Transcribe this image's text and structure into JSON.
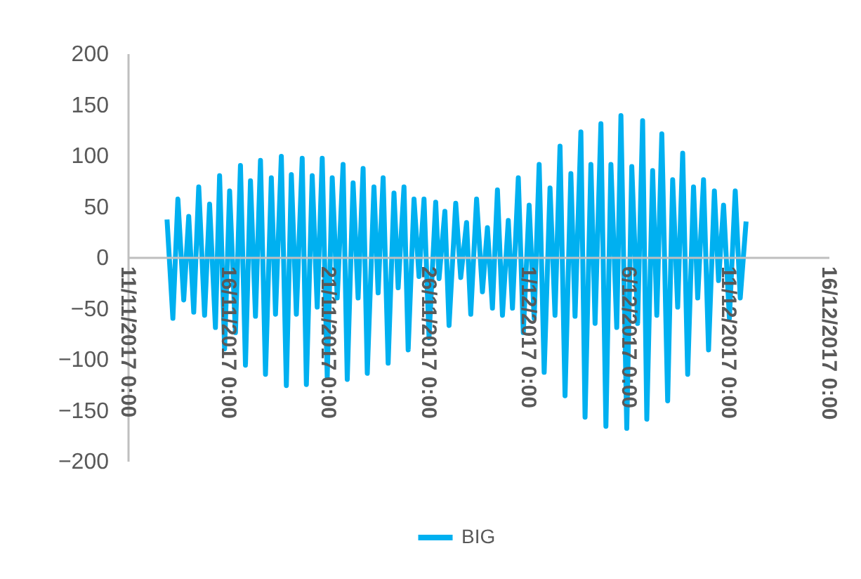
{
  "chart_data": {
    "type": "line",
    "legend": "bottom",
    "grid": false,
    "xlim": [
      "2017-11-11",
      "2017-12-16"
    ],
    "xticks": [
      {
        "value": "2017-11-11",
        "label": "11/11/2017 0:00"
      },
      {
        "value": "2017-11-16",
        "label": "16/11/2017 0:00"
      },
      {
        "value": "2017-11-21",
        "label": "21/11/2017 0:00"
      },
      {
        "value": "2017-11-26",
        "label": "26/11/2017 0:00"
      },
      {
        "value": "2017-12-01",
        "label": "1/12/2017 0:00"
      },
      {
        "value": "2017-12-06",
        "label": "6/12/2017 0:00"
      },
      {
        "value": "2017-12-11",
        "label": "11/12/2017 0:00"
      },
      {
        "value": "2017-12-16",
        "label": "16/12/2017 0:00"
      }
    ],
    "ylim": [
      -200,
      200
    ],
    "yticks": [
      -200,
      -150,
      -100,
      -50,
      0,
      50,
      100,
      150,
      200
    ],
    "x": [
      "2017-11-12T23:00",
      "2017-11-13T06:00",
      "2017-11-13T12:00",
      "2017-11-13T19:00",
      "2017-11-14T01:00",
      "2017-11-14T07:00",
      "2017-11-14T13:00",
      "2017-11-14T20:00",
      "2017-11-15T02:00",
      "2017-11-15T09:00",
      "2017-11-15T14:00",
      "2017-11-15T20:00",
      "2017-11-16T02:00",
      "2017-11-16T09:00",
      "2017-11-16T15:00",
      "2017-11-16T21:00",
      "2017-11-17T03:00",
      "2017-11-17T09:00",
      "2017-11-17T15:00",
      "2017-11-17T21:00",
      "2017-11-18T04:00",
      "2017-11-18T09:00",
      "2017-11-18T16:00",
      "2017-11-18T22:00",
      "2017-11-19T04:00",
      "2017-11-19T10:00",
      "2017-11-19T17:00",
      "2017-11-19T22:00",
      "2017-11-20T05:00",
      "2017-11-20T11:00",
      "2017-11-20T17:00",
      "2017-11-20T23:00",
      "2017-11-21T05:00",
      "2017-11-21T11:00",
      "2017-11-21T18:00",
      "2017-11-21T23:00",
      "2017-11-22T06:00",
      "2017-11-22T12:00",
      "2017-11-22T18:00",
      "2017-11-22T23:00",
      "2017-11-23T07:00",
      "2017-11-23T12:00",
      "2017-11-23T18:00",
      "2017-11-24T00:00",
      "2017-11-24T07:00",
      "2017-11-24T12:00",
      "2017-11-24T19:00",
      "2017-11-25T00:00",
      "2017-11-25T07:00",
      "2017-11-25T13:00",
      "2017-11-25T19:00",
      "2017-11-26T01:00",
      "2017-11-26T09:00",
      "2017-11-26T13:00",
      "2017-11-26T20:00",
      "2017-11-27T01:00",
      "2017-11-27T09:00",
      "2017-11-27T15:00",
      "2017-11-27T22:00",
      "2017-11-28T03:00",
      "2017-11-28T10:00",
      "2017-11-28T17:00",
      "2017-11-28T23:00",
      "2017-11-29T05:00",
      "2017-11-29T11:00",
      "2017-11-29T17:00",
      "2017-11-30T00:00",
      "2017-11-30T05:00",
      "2017-11-30T12:00",
      "2017-11-30T18:00",
      "2017-12-01T01:00",
      "2017-12-01T07:00",
      "2017-12-01T13:00",
      "2017-12-01T19:00",
      "2017-12-02T02:00",
      "2017-12-02T08:00",
      "2017-12-02T14:00",
      "2017-12-02T20:00",
      "2017-12-03T03:00",
      "2017-12-03T08:00",
      "2017-12-03T15:00",
      "2017-12-03T20:00",
      "2017-12-04T03:00",
      "2017-12-04T08:00",
      "2017-12-04T15:00",
      "2017-12-04T21:00",
      "2017-12-05T03:00",
      "2017-12-05T10:00",
      "2017-12-05T15:00",
      "2017-12-05T22:00",
      "2017-12-06T04:00",
      "2017-12-06T11:00",
      "2017-12-06T17:00",
      "2017-12-06T22:00",
      "2017-12-07T05:00",
      "2017-12-07T10:00",
      "2017-12-07T16:00",
      "2017-12-07T23:00",
      "2017-12-08T05:00",
      "2017-12-08T11:00",
      "2017-12-08T17:00",
      "2017-12-08T23:00",
      "2017-12-09T06:00",
      "2017-12-09T11:00",
      "2017-12-09T18:00",
      "2017-12-10T00:00",
      "2017-12-10T07:00",
      "2017-12-10T12:00",
      "2017-12-10T18:00",
      "2017-12-11T01:00",
      "2017-12-11T08:00",
      "2017-12-11T14:00",
      "2017-12-11T21:00"
    ],
    "series": [
      {
        "name": "BIG",
        "color": "#00b0f0",
        "values": [
          37,
          -60,
          57,
          -42,
          40,
          -54,
          69,
          -57,
          52,
          -69,
          80,
          -90,
          65,
          -74,
          90,
          -106,
          75,
          -58,
          95,
          -115,
          78,
          -56,
          99,
          -126,
          81,
          -56,
          97,
          -125,
          80,
          -49,
          97,
          -118,
          78,
          -40,
          91,
          -120,
          73,
          -40,
          87,
          -114,
          69,
          -35,
          78,
          -104,
          63,
          -30,
          69,
          -91,
          57,
          -19,
          57,
          -79,
          54,
          -21,
          45,
          -67,
          53,
          -20,
          34,
          -56,
          57,
          -34,
          29,
          -50,
          66,
          -57,
          36,
          -50,
          78,
          -74,
          51,
          -60,
          91,
          -113,
          68,
          -57,
          109,
          -136,
          82,
          -58,
          123,
          -157,
          91,
          -65,
          131,
          -166,
          91,
          -69,
          139,
          -168,
          89,
          -65,
          134,
          -159,
          85,
          -57,
          121,
          -141,
          76,
          -49,
          102,
          -115,
          69,
          -40,
          76,
          -91,
          65,
          -23,
          51,
          -60,
          65,
          -40,
          35
        ]
      }
    ]
  }
}
